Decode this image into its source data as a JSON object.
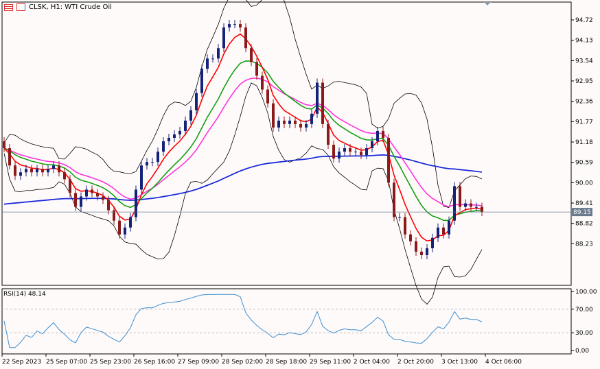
{
  "header": {
    "title": "CLSK, H1:  WTI Crude Oil",
    "icons": [
      "list-icon",
      "symbol-icon"
    ]
  },
  "colors": {
    "background": "#fffafa",
    "bull": "#14237a",
    "bear": "#8b1a1a",
    "ma_red": "#ff0000",
    "ma_green": "#12a012",
    "ma_magenta": "#ff33dd",
    "ma_blue": "#1a2ad8",
    "bands": "#000000",
    "rsi": "#3c8fd0",
    "price_line": "#6a7a8c"
  },
  "chart_data": [
    {
      "type": "candlestick",
      "title": "CLSK, H1:  WTI Crude Oil",
      "ylim": [
        87.7,
        95.2
      ],
      "yticks": [
        "94.72",
        "94.13",
        "93.54",
        "92.95",
        "92.36",
        "91.77",
        "91.18",
        "90.59",
        "90.00",
        "89.41",
        "88.82",
        "88.23"
      ],
      "current_price": "89.15",
      "xticks": [
        "22 Sep 2023",
        "25 Sep 07:00",
        "25 Sep 23:00",
        "26 Sep 16:00",
        "27 Sep 09:00",
        "28 Sep 02:00",
        "28 Sep 18:00",
        "29 Sep 11:00",
        "2 Oct 04:00",
        "2 Oct 20:00",
        "3 Oct 13:00",
        "4 Oct 06:00"
      ],
      "close": [
        91.0,
        90.5,
        90.2,
        90.3,
        90.4,
        90.3,
        90.4,
        90.3,
        90.4,
        90.5,
        90.3,
        90.1,
        89.7,
        89.3,
        89.6,
        89.8,
        89.7,
        89.6,
        89.5,
        89.2,
        88.9,
        88.5,
        88.7,
        89.0,
        89.8,
        90.5,
        90.6,
        90.6,
        90.9,
        91.2,
        91.3,
        91.4,
        91.5,
        91.8,
        92.1,
        92.6,
        93.3,
        93.6,
        93.6,
        93.9,
        94.5,
        94.6,
        94.6,
        94.5,
        93.9,
        93.5,
        93.1,
        92.7,
        92.3,
        91.6,
        91.8,
        91.7,
        91.8,
        91.7,
        91.6,
        91.7,
        92.0,
        92.9,
        91.7,
        91.1,
        90.7,
        90.9,
        91.0,
        90.9,
        90.9,
        90.8,
        91.0,
        91.2,
        91.5,
        91.3,
        90.0,
        89.0,
        89.0,
        88.5,
        88.3,
        88.0,
        87.9,
        88.1,
        88.4,
        88.7,
        88.5,
        88.9,
        89.9,
        89.3,
        89.4,
        89.3,
        89.3,
        89.15
      ],
      "indicators": [
        "moving averages",
        "Bollinger bands"
      ]
    },
    {
      "type": "line",
      "title": "RSI(14) 48.14",
      "ylim": [
        0,
        100
      ],
      "yticks": [
        "100.00",
        "70.00",
        "30.00",
        "0.00"
      ],
      "levels": [
        70,
        30
      ]
    }
  ]
}
